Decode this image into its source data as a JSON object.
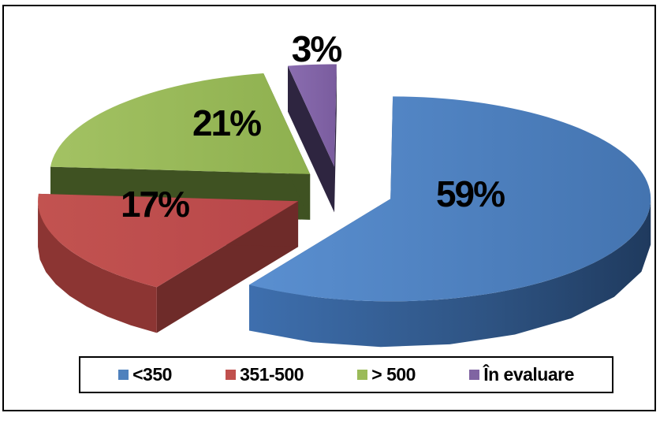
{
  "chart_data": {
    "type": "pie",
    "title": "",
    "categories": [
      "<350",
      "351-500",
      "> 500",
      "În evaluare"
    ],
    "values": [
      59,
      17,
      21,
      3
    ],
    "data_labels": [
      "59%",
      "17%",
      "21%",
      "3%"
    ],
    "colors": [
      "#4F81BD",
      "#C0504D",
      "#9BBB59",
      "#8064A2"
    ],
    "exploded": true,
    "three_d": true,
    "legend_position": "bottom"
  }
}
